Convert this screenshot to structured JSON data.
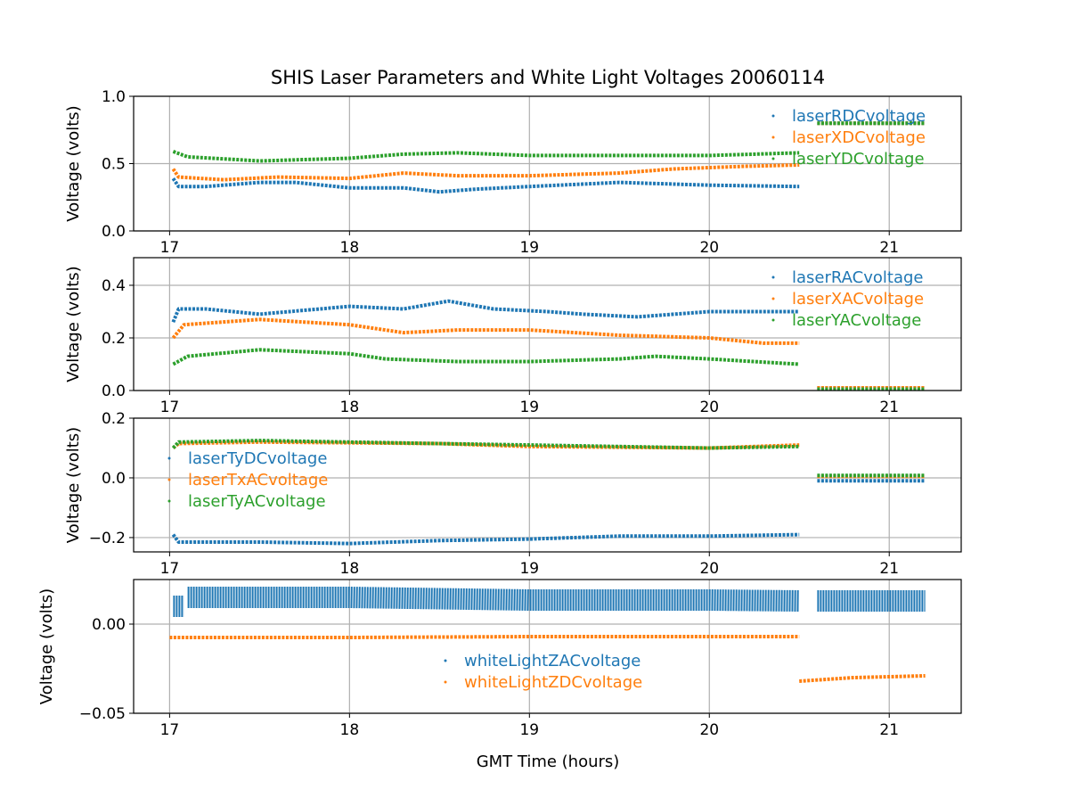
{
  "chart_data": [
    {
      "type": "scatter",
      "title": "SHIS Laser Parameters and White Light Voltages 20060114",
      "ylabel": "Voltage (volts)",
      "xlabel": "",
      "xlim": [
        16.8,
        21.4
      ],
      "ylim": [
        0,
        1.0
      ],
      "xticks": [
        "17",
        "18",
        "19",
        "20",
        "21"
      ],
      "yticks": [
        "0.0",
        "0.5",
        "1.0"
      ],
      "ytick_values": [
        0,
        0.5,
        1.0
      ],
      "grid": true,
      "legend": "upper right",
      "series": [
        {
          "name": "laserRDCvoltage",
          "color": "#1f77b4",
          "segments": [
            [
              [
                17.02,
                0.39
              ],
              [
                17.05,
                0.33
              ],
              [
                17.2,
                0.33
              ],
              [
                17.5,
                0.36
              ],
              [
                17.7,
                0.36
              ],
              [
                18.0,
                0.32
              ],
              [
                18.3,
                0.32
              ],
              [
                18.5,
                0.29
              ],
              [
                18.7,
                0.31
              ],
              [
                19.0,
                0.33
              ],
              [
                19.5,
                0.36
              ],
              [
                20.0,
                0.34
              ],
              [
                20.5,
                0.33
              ]
            ],
            [
              [
                20.6,
                0.8
              ],
              [
                21.2,
                0.8
              ]
            ]
          ]
        },
        {
          "name": "laserXDCvoltage",
          "color": "#ff7f0e",
          "segments": [
            [
              [
                17.02,
                0.46
              ],
              [
                17.05,
                0.4
              ],
              [
                17.3,
                0.38
              ],
              [
                17.6,
                0.4
              ],
              [
                18.0,
                0.39
              ],
              [
                18.3,
                0.43
              ],
              [
                18.6,
                0.41
              ],
              [
                19.0,
                0.41
              ],
              [
                19.5,
                0.43
              ],
              [
                19.8,
                0.46
              ],
              [
                20.2,
                0.48
              ],
              [
                20.5,
                0.49
              ]
            ],
            [
              [
                20.6,
                0.8
              ],
              [
                21.2,
                0.8
              ]
            ]
          ]
        },
        {
          "name": "laserYDCvoltage",
          "color": "#2ca02c",
          "segments": [
            [
              [
                17.02,
                0.59
              ],
              [
                17.1,
                0.55
              ],
              [
                17.5,
                0.52
              ],
              [
                18.0,
                0.54
              ],
              [
                18.3,
                0.57
              ],
              [
                18.6,
                0.58
              ],
              [
                19.0,
                0.56
              ],
              [
                19.5,
                0.56
              ],
              [
                20.0,
                0.56
              ],
              [
                20.5,
                0.58
              ]
            ],
            [
              [
                20.6,
                0.8
              ],
              [
                21.2,
                0.8
              ]
            ]
          ]
        }
      ]
    },
    {
      "type": "scatter",
      "ylabel": "Voltage (volts)",
      "xlim": [
        16.8,
        21.4
      ],
      "ylim": [
        0,
        0.505
      ],
      "xticks": [
        "17",
        "18",
        "19",
        "20",
        "21"
      ],
      "yticks": [
        "0.0",
        "0.2",
        "0.4"
      ],
      "ytick_values": [
        0,
        0.2,
        0.4
      ],
      "grid": true,
      "legend": "upper right",
      "series": [
        {
          "name": "laserRACvoltage",
          "color": "#1f77b4",
          "segments": [
            [
              [
                17.02,
                0.26
              ],
              [
                17.05,
                0.31
              ],
              [
                17.2,
                0.31
              ],
              [
                17.5,
                0.29
              ],
              [
                18.0,
                0.32
              ],
              [
                18.3,
                0.31
              ],
              [
                18.55,
                0.34
              ],
              [
                18.8,
                0.31
              ],
              [
                19.1,
                0.3
              ],
              [
                19.3,
                0.29
              ],
              [
                19.6,
                0.28
              ],
              [
                20.0,
                0.3
              ],
              [
                20.3,
                0.3
              ],
              [
                20.5,
                0.3
              ]
            ],
            [
              [
                20.6,
                0.01
              ],
              [
                21.2,
                0.01
              ]
            ]
          ]
        },
        {
          "name": "laserXACvoltage",
          "color": "#ff7f0e",
          "segments": [
            [
              [
                17.02,
                0.2
              ],
              [
                17.08,
                0.25
              ],
              [
                17.5,
                0.27
              ],
              [
                18.0,
                0.25
              ],
              [
                18.3,
                0.22
              ],
              [
                18.6,
                0.23
              ],
              [
                19.0,
                0.23
              ],
              [
                19.5,
                0.21
              ],
              [
                20.0,
                0.2
              ],
              [
                20.3,
                0.18
              ],
              [
                20.5,
                0.18
              ]
            ],
            [
              [
                20.6,
                0.01
              ],
              [
                21.2,
                0.01
              ]
            ]
          ]
        },
        {
          "name": "laserYACvoltage",
          "color": "#2ca02c",
          "segments": [
            [
              [
                17.02,
                0.1
              ],
              [
                17.1,
                0.13
              ],
              [
                17.5,
                0.155
              ],
              [
                18.0,
                0.14
              ],
              [
                18.2,
                0.12
              ],
              [
                18.6,
                0.11
              ],
              [
                19.0,
                0.11
              ],
              [
                19.5,
                0.12
              ],
              [
                19.7,
                0.13
              ],
              [
                20.0,
                0.12
              ],
              [
                20.5,
                0.1
              ]
            ],
            [
              [
                20.6,
                0.005
              ],
              [
                21.2,
                0.005
              ]
            ]
          ]
        }
      ]
    },
    {
      "type": "scatter",
      "ylabel": "Voltage (volts)",
      "xlim": [
        16.8,
        21.4
      ],
      "ylim": [
        -0.248,
        0.2
      ],
      "xticks": [
        "17",
        "18",
        "19",
        "20",
        "21"
      ],
      "yticks": [
        "−0.2",
        "0.0",
        "0.2"
      ],
      "ytick_values": [
        -0.2,
        0,
        0.2
      ],
      "grid": true,
      "legend": "center left",
      "series": [
        {
          "name": "laserTyDCvoltage",
          "color": "#1f77b4",
          "segments": [
            [
              [
                17.02,
                -0.19
              ],
              [
                17.05,
                -0.215
              ],
              [
                17.5,
                -0.215
              ],
              [
                18.0,
                -0.22
              ],
              [
                18.5,
                -0.21
              ],
              [
                19.0,
                -0.205
              ],
              [
                19.5,
                -0.195
              ],
              [
                20.0,
                -0.195
              ],
              [
                20.5,
                -0.19
              ]
            ],
            [
              [
                20.6,
                -0.01
              ],
              [
                21.2,
                -0.01
              ]
            ]
          ]
        },
        {
          "name": "laserTxACvoltage",
          "color": "#ff7f0e",
          "segments": [
            [
              [
                17.02,
                0.1
              ],
              [
                17.05,
                0.115
              ],
              [
                17.5,
                0.12
              ],
              [
                18.5,
                0.115
              ],
              [
                19.0,
                0.105
              ],
              [
                20.0,
                0.1
              ],
              [
                20.5,
                0.11
              ]
            ],
            [
              [
                20.6,
                0.005
              ],
              [
                21.2,
                0.005
              ]
            ]
          ]
        },
        {
          "name": "laserTyACvoltage",
          "color": "#2ca02c",
          "segments": [
            [
              [
                17.02,
                0.1
              ],
              [
                17.05,
                0.12
              ],
              [
                17.5,
                0.125
              ],
              [
                18.0,
                0.12
              ],
              [
                18.5,
                0.115
              ],
              [
                19.0,
                0.11
              ],
              [
                20.0,
                0.1
              ],
              [
                20.5,
                0.105
              ]
            ],
            [
              [
                20.6,
                0.008
              ],
              [
                21.2,
                0.008
              ]
            ]
          ]
        }
      ]
    },
    {
      "type": "scatter",
      "ylabel": "Voltage (volts)",
      "xlabel": "GMT Time (hours)",
      "xlim": [
        16.8,
        21.4
      ],
      "ylim": [
        -0.05,
        0.025
      ],
      "xticks": [
        "17",
        "18",
        "19",
        "20",
        "21"
      ],
      "yticks": [
        "−0.05",
        "0.00"
      ],
      "ytick_values": [
        -0.05,
        0
      ],
      "grid": true,
      "legend": "lower center",
      "series": [
        {
          "name": "whiteLightZACvoltage",
          "color": "#1f77b4",
          "spread": 0.006,
          "segments": [
            [
              [
                17.02,
                0.01
              ],
              [
                17.08,
                0.01
              ]
            ],
            [
              [
                17.1,
                0.015
              ],
              [
                17.5,
                0.015
              ],
              [
                18.0,
                0.015
              ],
              [
                19.0,
                0.0135
              ],
              [
                20.0,
                0.0135
              ],
              [
                20.5,
                0.013
              ]
            ],
            [
              [
                20.6,
                0.013
              ],
              [
                21.2,
                0.013
              ]
            ]
          ]
        },
        {
          "name": "whiteLightZDCvoltage",
          "color": "#ff7f0e",
          "segments": [
            [
              [
                17.0,
                -0.0075
              ],
              [
                18.0,
                -0.0075
              ],
              [
                19.0,
                -0.007
              ],
              [
                20.0,
                -0.007
              ],
              [
                20.5,
                -0.007
              ]
            ],
            [
              [
                20.5,
                -0.032
              ],
              [
                20.8,
                -0.03
              ],
              [
                21.2,
                -0.029
              ]
            ]
          ]
        }
      ]
    }
  ]
}
